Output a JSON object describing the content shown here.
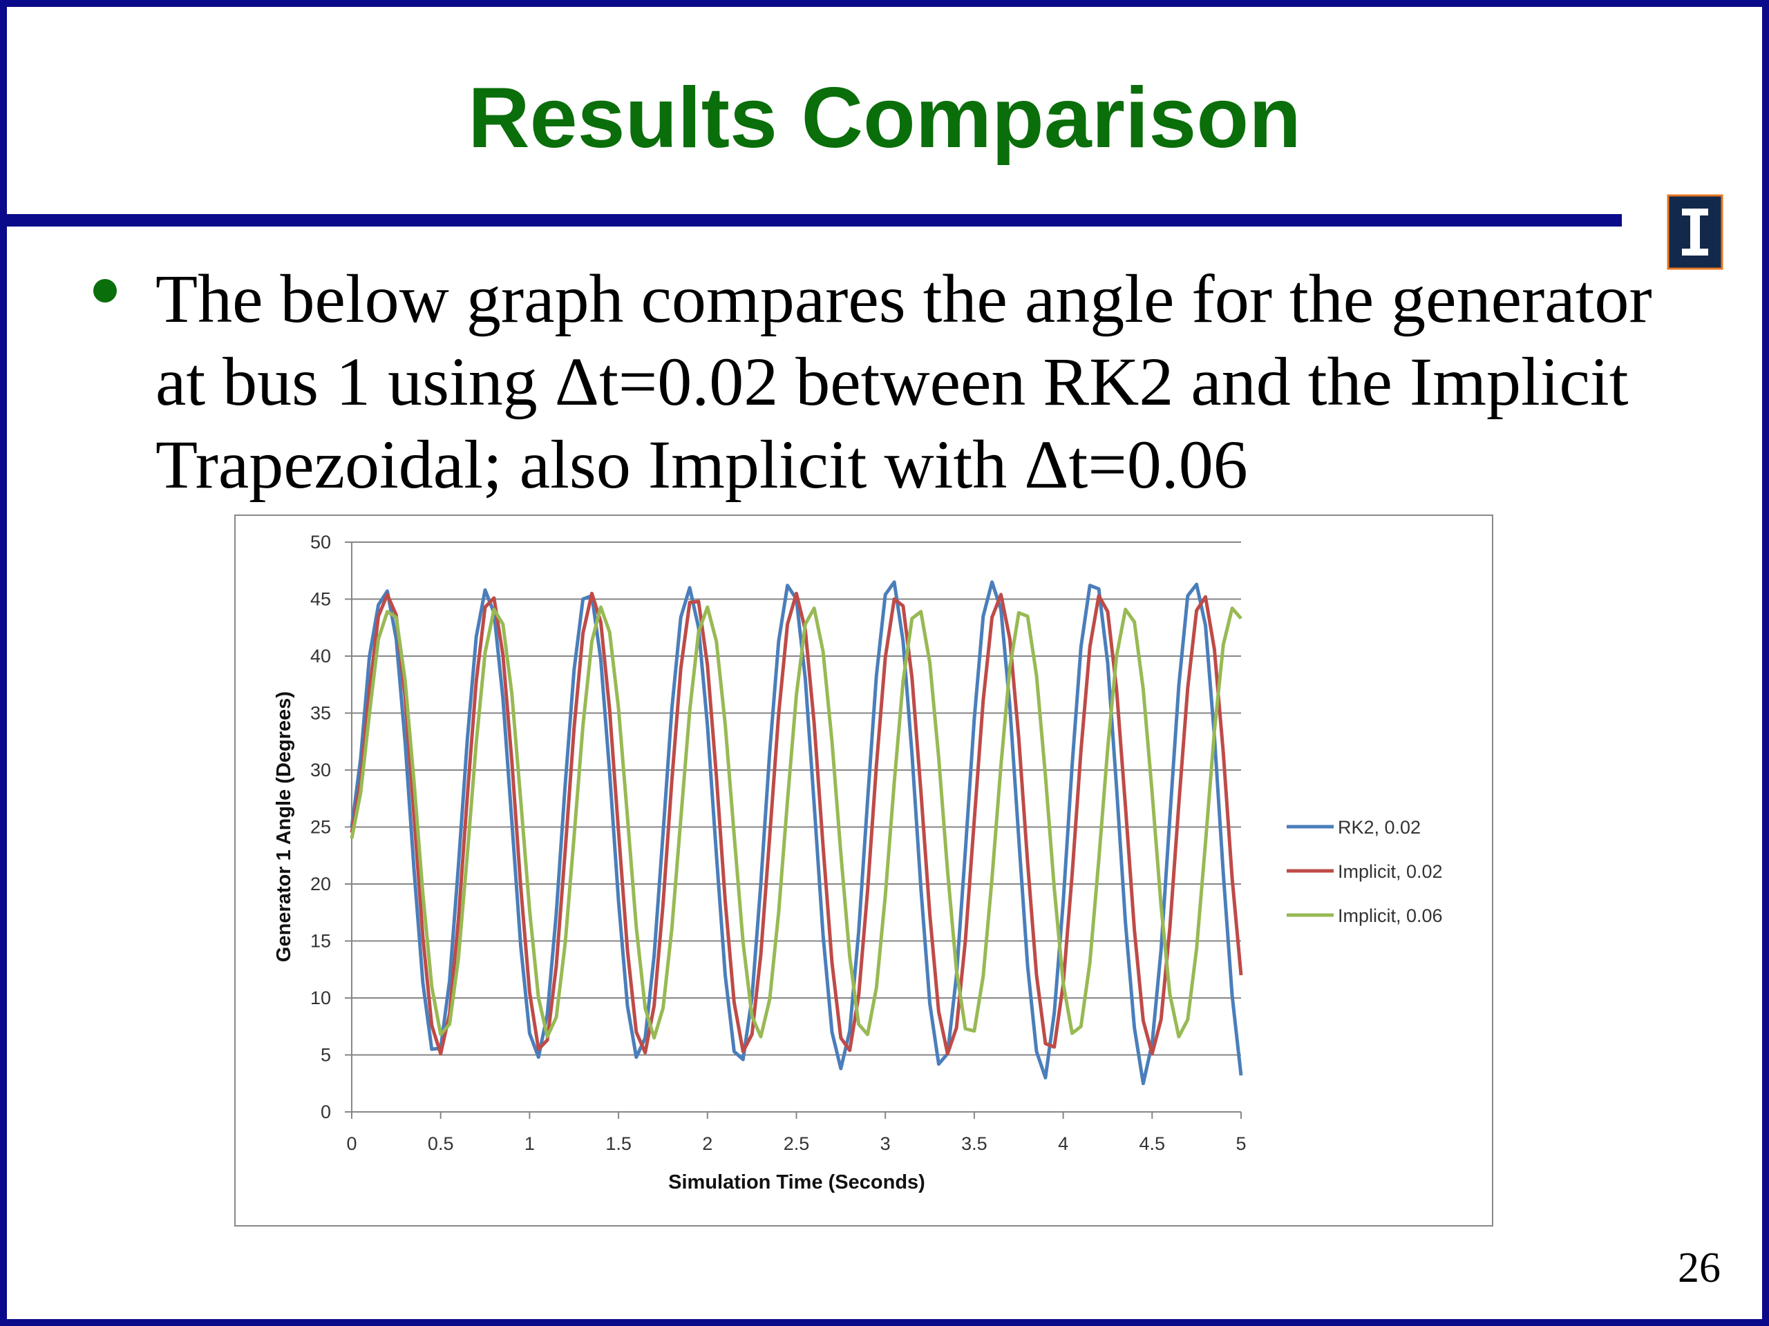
{
  "slide": {
    "title": "Results Comparison",
    "bullet": [
      "The below graph compares the angle for the generator",
      "at bus 1 using Δt=0.02 between RK2 and the Implicit",
      "Trapezoidal; also Implicit with Δt=0.06"
    ],
    "page_number": "26"
  },
  "chart_data": {
    "type": "line",
    "x_label": "Simulation Time (Seconds)",
    "y_label": "Generator 1 Angle (Degrees)",
    "x": [
      0,
      0.05,
      0.1,
      0.15,
      0.2,
      0.25,
      0.3,
      0.35,
      0.4,
      0.45,
      0.5,
      0.55,
      0.6,
      0.65,
      0.7,
      0.75,
      0.8,
      0.85,
      0.9,
      0.95,
      1,
      1.05,
      1.1,
      1.15,
      1.2,
      1.25,
      1.3,
      1.35,
      1.4,
      1.45,
      1.5,
      1.55,
      1.6,
      1.65,
      1.7,
      1.75,
      1.8,
      1.85,
      1.9,
      1.95,
      2,
      2.05,
      2.1,
      2.15,
      2.2,
      2.25,
      2.3,
      2.35,
      2.4,
      2.45,
      2.5,
      2.55,
      2.6,
      2.65,
      2.7,
      2.75,
      2.8,
      2.85,
      2.9,
      2.95,
      3,
      3.05,
      3.1,
      3.15,
      3.2,
      3.25,
      3.3,
      3.35,
      3.4,
      3.45,
      3.5,
      3.55,
      3.6,
      3.65,
      3.7,
      3.75,
      3.8,
      3.85,
      3.9,
      3.95,
      4,
      4.05,
      4.1,
      4.15,
      4.2,
      4.25,
      4.3,
      4.35,
      4.4,
      4.45,
      4.5,
      4.55,
      4.6,
      4.65,
      4.7,
      4.75,
      4.8,
      4.85,
      4.9,
      4.95,
      5
    ],
    "series": [
      {
        "name": "RK2, 0.02",
        "color": "#4a7ebb",
        "values": [
          25,
          31,
          40,
          44.5,
          45.7,
          41.5,
          32.5,
          21.3,
          11.3,
          5.5,
          5.6,
          11.5,
          21.6,
          32.7,
          41.7,
          45.8,
          43.8,
          36.3,
          25.5,
          14.6,
          6.9,
          4.8,
          8.6,
          17.4,
          28.7,
          38.8,
          45.0,
          45.3,
          39.7,
          29.8,
          18.5,
          9.3,
          4.8,
          6.5,
          13.7,
          24.4,
          35.4,
          43.4,
          46.0,
          42.5,
          33.9,
          22.6,
          12.0,
          5.3,
          4.6,
          10.0,
          20.0,
          31.6,
          41.3,
          46.2,
          45.0,
          38.0,
          27.0,
          15.5,
          7.0,
          3.8,
          7.1,
          15.8,
          27.3,
          38.3,
          45.4,
          46.5,
          41.3,
          31.4,
          19.6,
          9.5,
          4.2,
          5.1,
          12.0,
          22.9,
          34.5,
          43.5,
          46.5,
          44.1,
          35.6,
          24.0,
          12.8,
          5.3,
          3.0,
          8.7,
          18.4,
          30.4,
          40.8,
          46.2,
          45.9,
          39.4,
          28.5,
          16.6,
          7.4,
          2.5,
          6.0,
          14.2,
          25.9,
          37.4,
          45.3,
          46.3,
          42.7,
          33.0,
          20.9,
          10.2,
          3.2
        ]
      },
      {
        "name": "Implicit, 0.02",
        "color": "#be4b48",
        "values": [
          24.5,
          29,
          37,
          43.5,
          45.4,
          43.6,
          36.4,
          26.0,
          15.3,
          7.6,
          5.1,
          8.6,
          16.9,
          27.7,
          37.8,
          44.3,
          45.1,
          40.1,
          30.8,
          19.8,
          10.5,
          5.5,
          6.3,
          12.8,
          22.9,
          33.7,
          42.0,
          45.5,
          43.0,
          35.3,
          24.6,
          14.2,
          7.0,
          5.2,
          9.3,
          18.2,
          29.1,
          38.9,
          44.7,
          44.8,
          39.2,
          29.5,
          18.5,
          9.6,
          5.3,
          6.8,
          13.8,
          24.2,
          34.9,
          42.8,
          45.5,
          42.3,
          34.1,
          23.3,
          13.1,
          6.5,
          5.4,
          10.2,
          19.4,
          30.4,
          39.9,
          45.0,
          44.4,
          38.1,
          28.1,
          17.3,
          8.8,
          5.1,
          7.4,
          15.0,
          25.6,
          36.1,
          43.4,
          45.4,
          41.5,
          32.8,
          21.9,
          12.0,
          6.0,
          5.7,
          11.2,
          20.8,
          31.7,
          40.8,
          45.3,
          43.9,
          37.1,
          26.8,
          16.0,
          8.0,
          5.1,
          8.1,
          16.2,
          27.0,
          37.2,
          44.0,
          45.2,
          40.6,
          31.5,
          20.5,
          12
        ]
      },
      {
        "name": "Implicit, 0.06",
        "color": "#98b954",
        "values": [
          24,
          28,
          35,
          41.5,
          43.9,
          43.4,
          37.9,
          29.0,
          19.1,
          11.0,
          6.8,
          7.7,
          13.5,
          22.6,
          32.4,
          40.3,
          44.1,
          42.8,
          36.7,
          27.4,
          17.7,
          10.0,
          6.6,
          8.3,
          14.8,
          24.2,
          33.9,
          41.3,
          44.3,
          42.1,
          35.4,
          25.9,
          16.2,
          9.1,
          6.5,
          9.1,
          16.1,
          25.7,
          35.2,
          42.1,
          44.3,
          41.3,
          34.0,
          24.3,
          14.9,
          8.4,
          6.6,
          9.9,
          17.5,
          27.3,
          36.6,
          42.8,
          44.2,
          40.4,
          32.5,
          22.7,
          13.6,
          7.7,
          6.8,
          10.9,
          19.0,
          28.9,
          37.8,
          43.3,
          43.9,
          39.4,
          31.1,
          21.1,
          12.4,
          7.3,
          7.1,
          11.9,
          20.5,
          30.4,
          39.0,
          43.8,
          43.5,
          38.3,
          29.5,
          19.6,
          11.3,
          6.9,
          7.5,
          13.1,
          22.1,
          31.9,
          40.0,
          44.1,
          43.0,
          37.1,
          28.0,
          18.1,
          10.3,
          6.6,
          8.1,
          14.3,
          23.6,
          33.4,
          41.0,
          44.2,
          43.3
        ]
      }
    ],
    "xlim": [
      0,
      5
    ],
    "xticks": [
      0,
      0.5,
      1,
      1.5,
      2,
      2.5,
      3,
      3.5,
      4,
      4.5,
      5
    ],
    "ylim": [
      0,
      50
    ],
    "yticks": [
      0,
      5,
      10,
      15,
      20,
      25,
      30,
      35,
      40,
      45,
      50
    ],
    "grid": true,
    "legend": "right"
  }
}
